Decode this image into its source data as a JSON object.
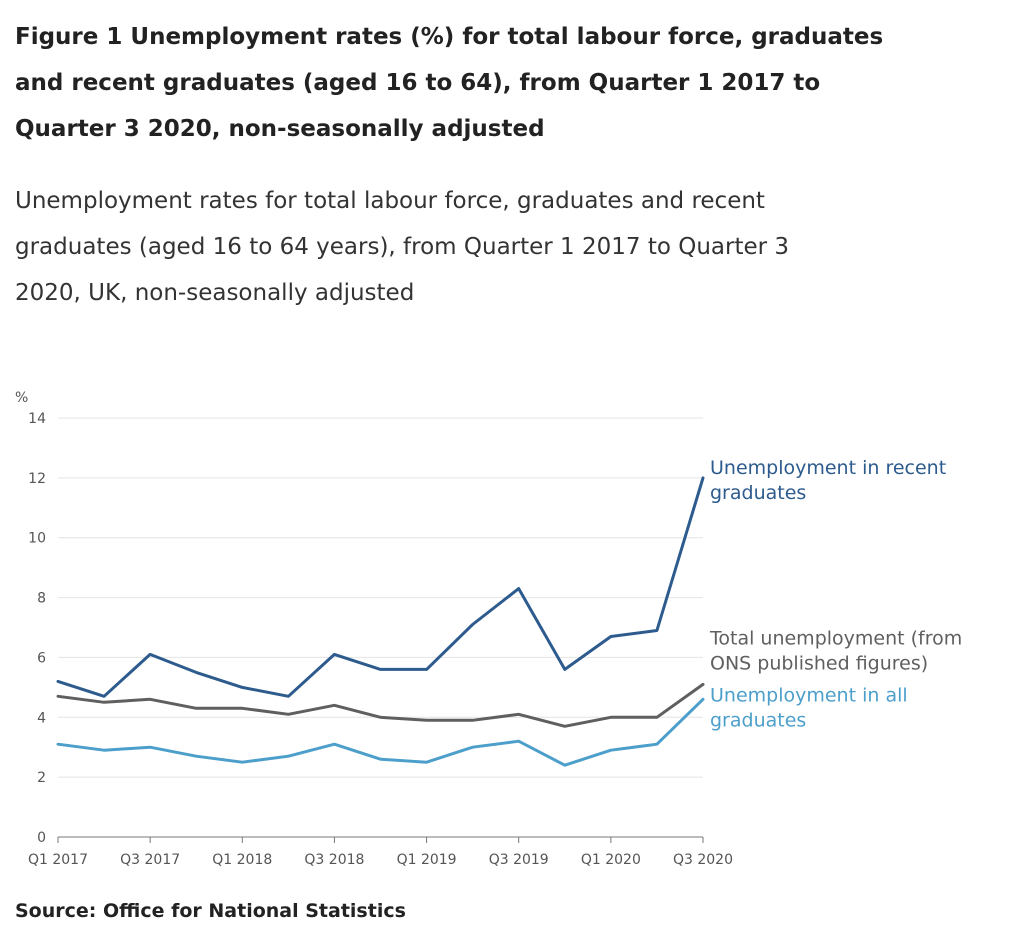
{
  "chart_data": {
    "type": "line",
    "title": "Figure 1 Unemployment rates (%) for total labour force, graduates and recent graduates (aged 16 to 64), from Quarter 1 2017 to Quarter 3 2020, non-seasonally adjusted",
    "subtitle": "Unemployment rates for total labour force, graduates and recent graduates (aged 16 to 64 years), from Quarter 1 2017 to Quarter 3 2020, UK, non-seasonally adjusted",
    "source": "Source: Office for National Statistics",
    "ylabel": "%",
    "xlabel": "",
    "ylim": [
      0,
      14
    ],
    "yticks": [
      0,
      2,
      4,
      6,
      8,
      10,
      12,
      14
    ],
    "categories": [
      "Q1 2017",
      "Q2 2017",
      "Q3 2017",
      "Q4 2017",
      "Q1 2018",
      "Q2 2018",
      "Q3 2018",
      "Q4 2018",
      "Q1 2019",
      "Q2 2019",
      "Q3 2019",
      "Q4 2019",
      "Q1 2020",
      "Q2 2020",
      "Q3 2020"
    ],
    "xtick_labels": [
      "Q1 2017",
      "Q3 2017",
      "Q1 2018",
      "Q3 2018",
      "Q1 2019",
      "Q3 2019",
      "Q1 2020",
      "Q3 2020"
    ],
    "grid": true,
    "legend": "direct labels at right",
    "series": [
      {
        "name": "Unemployment in recent graduates",
        "label_lines": [
          "Unemployment in recent",
          "graduates"
        ],
        "color": "#2d5b8e",
        "values": [
          5.2,
          4.7,
          6.1,
          5.5,
          5.0,
          4.7,
          6.1,
          5.6,
          5.6,
          7.1,
          8.3,
          5.6,
          6.7,
          6.9,
          12.0
        ]
      },
      {
        "name": "Total unemployment (from ONS published figures)",
        "label_lines": [
          "Total unemployment (from",
          "ONS published figures)"
        ],
        "color": "#5f5f5f",
        "values": [
          4.7,
          4.5,
          4.6,
          4.3,
          4.3,
          4.1,
          4.4,
          4.0,
          3.9,
          3.9,
          4.1,
          3.7,
          4.0,
          4.0,
          5.1
        ]
      },
      {
        "name": "Unemployment in all graduates",
        "label_lines": [
          "Unemployment in all",
          "graduates"
        ],
        "color": "#4d9fcb",
        "values": [
          3.1,
          2.9,
          3.0,
          2.7,
          2.5,
          2.7,
          3.1,
          2.6,
          2.5,
          3.0,
          3.2,
          2.4,
          2.9,
          3.1,
          4.6
        ]
      }
    ]
  }
}
